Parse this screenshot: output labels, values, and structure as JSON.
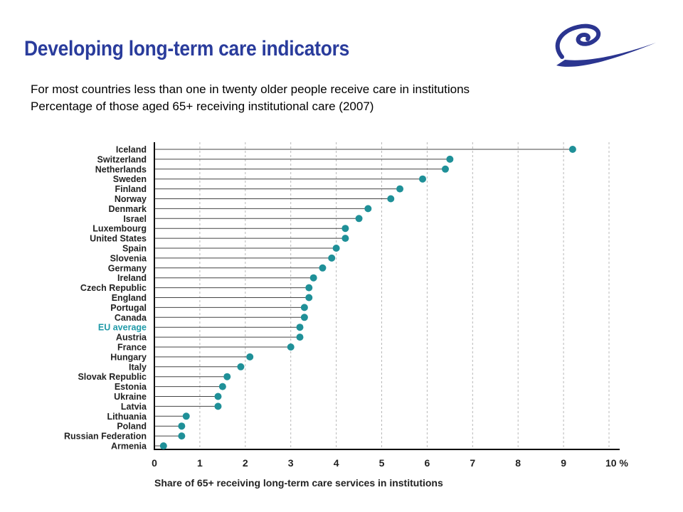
{
  "slide": {
    "title": "Developing long-term care indicators",
    "subtitle_1": "For most countries less than one in twenty older people receive care in institutions",
    "subtitle_2": "Percentage of those aged 65+ receiving institutional care (2007)",
    "logo_icon": "council-of-europe-swirl-icon"
  },
  "colors": {
    "title": "#2a3c9c",
    "marker": "#1f9098",
    "eu_label": "#1f9aa8",
    "logo": "#2b3590"
  },
  "chart_data": {
    "type": "scatter",
    "style": "lollipop",
    "categories": [
      "Iceland",
      "Switzerland",
      "Netherlands",
      "Sweden",
      "Finland",
      "Norway",
      "Denmark",
      "Israel",
      "Luxembourg",
      "United States",
      "Spain",
      "Slovenia",
      "Germany",
      "Ireland",
      "Czech Republic",
      "England",
      "Portugal",
      "Canada",
      "EU average",
      "Austria",
      "France",
      "Hungary",
      "Italy",
      "Slovak Republic",
      "Estonia",
      "Ukraine",
      "Latvia",
      "Lithuania",
      "Poland",
      "Russian Federation",
      "Armenia"
    ],
    "values": [
      9.2,
      6.5,
      6.4,
      5.9,
      5.4,
      5.2,
      4.7,
      4.5,
      4.2,
      4.2,
      4.0,
      3.9,
      3.7,
      3.5,
      3.4,
      3.4,
      3.3,
      3.3,
      3.2,
      3.2,
      3.0,
      2.1,
      1.9,
      1.6,
      1.5,
      1.4,
      1.4,
      0.7,
      0.6,
      0.6,
      0.2
    ],
    "highlight_category": "EU average",
    "xlim": [
      0,
      10
    ],
    "xticks": [
      "0",
      "1",
      "2",
      "3",
      "4",
      "5",
      "6",
      "7",
      "8",
      "9",
      "10 %"
    ],
    "xlabel": "Share of 65+ receiving long-term care services in institutions",
    "ylabel": "",
    "grid": "vertical dashed"
  }
}
